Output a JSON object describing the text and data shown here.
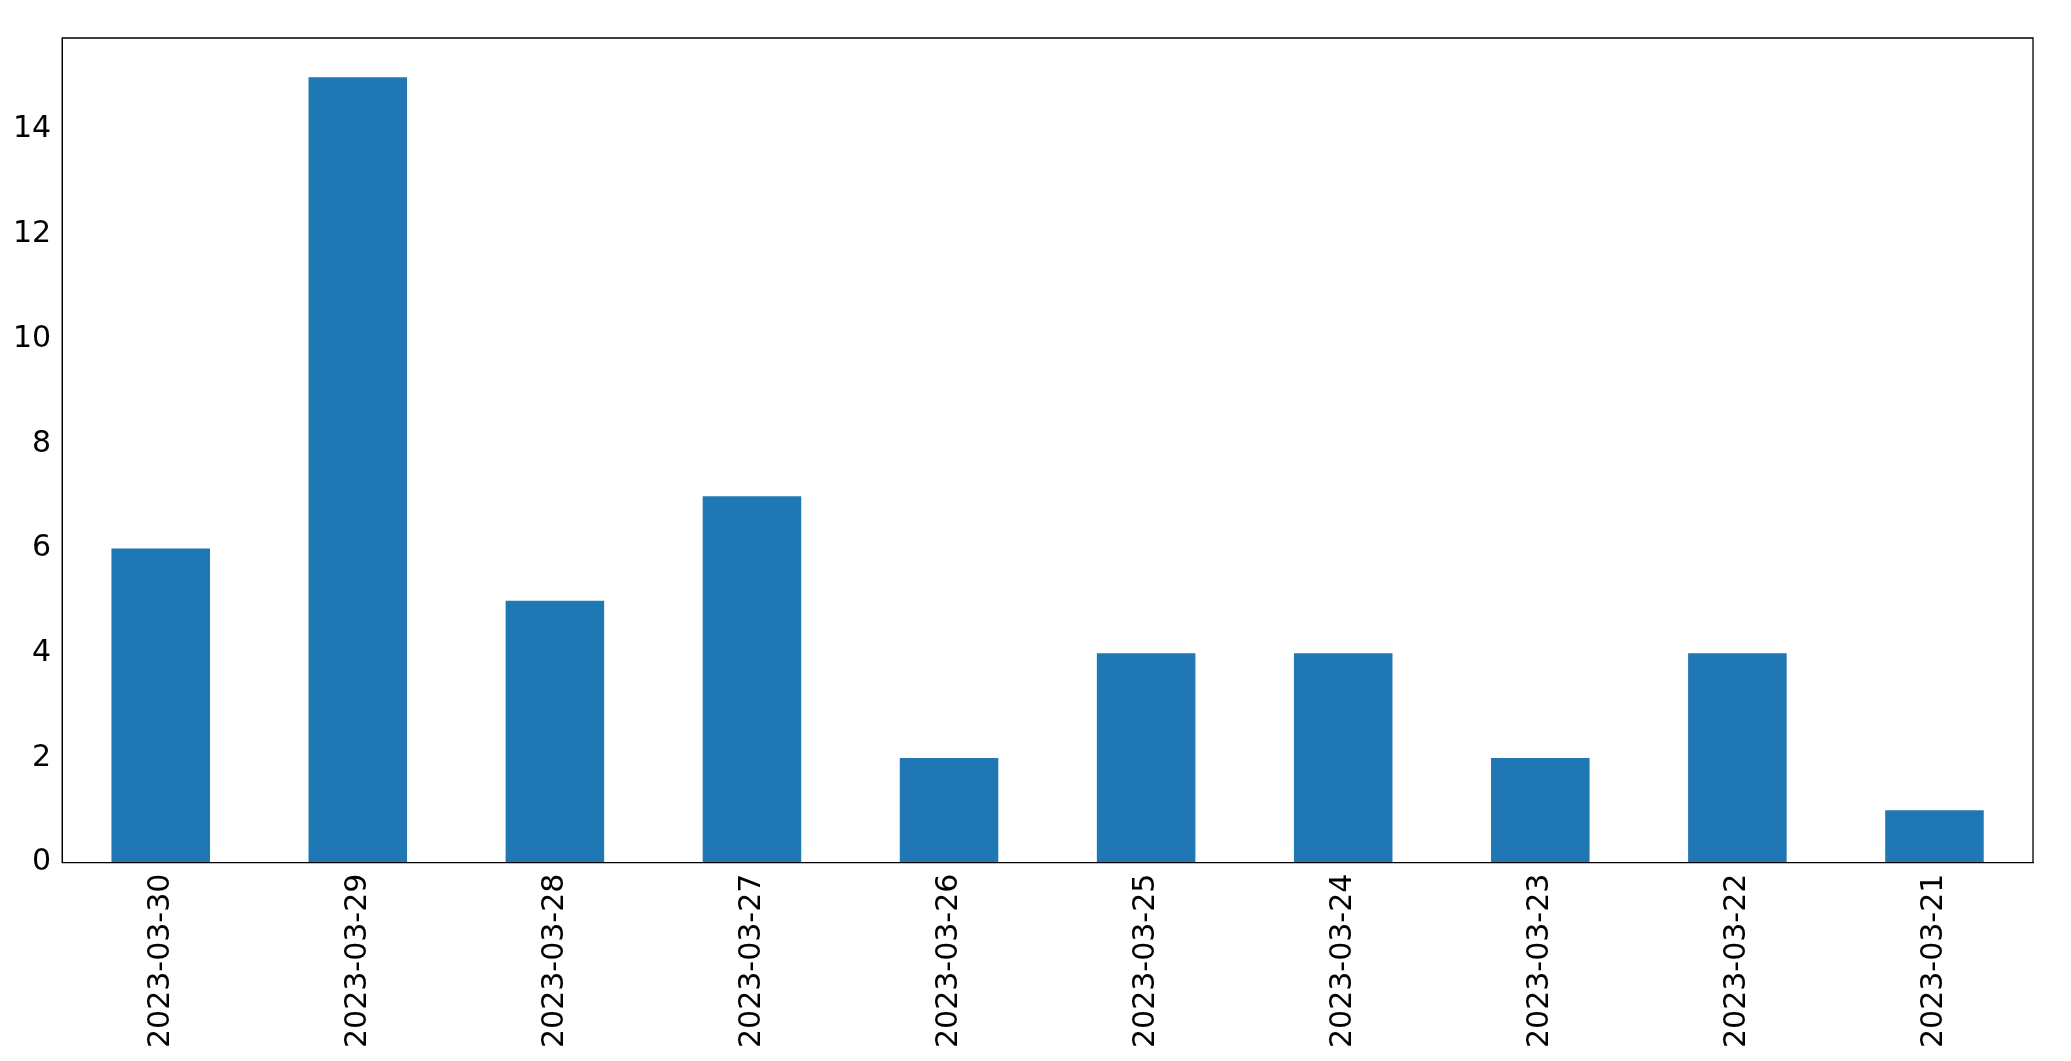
{
  "chart_data": {
    "type": "bar",
    "categories": [
      "2023-03-30",
      "2023-03-29",
      "2023-03-28",
      "2023-03-27",
      "2023-03-26",
      "2023-03-25",
      "2023-03-24",
      "2023-03-23",
      "2023-03-22",
      "2023-03-21"
    ],
    "values": [
      6,
      15,
      5,
      7,
      2,
      4,
      4,
      2,
      4,
      1
    ],
    "color": "#1f77b4",
    "ylim": [
      0,
      15.75
    ],
    "yticks": [
      0,
      2,
      4,
      6,
      8,
      10,
      12,
      14
    ],
    "grid": false,
    "legend": false
  }
}
